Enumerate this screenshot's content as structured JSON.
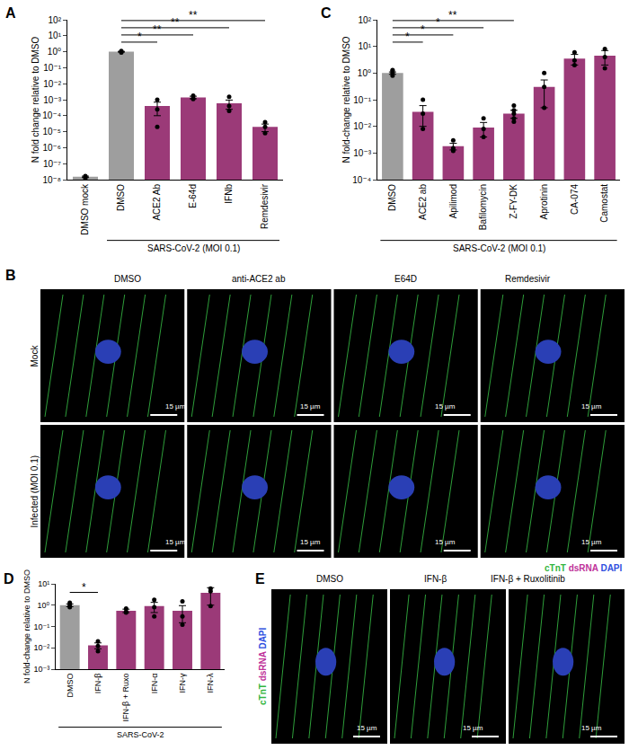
{
  "chart_data": [
    {
      "type": "bar",
      "title": "A",
      "ylabel": "N fold change relative to DMSO",
      "categories": [
        "DMSO mock",
        "DMSO",
        "ACE2 Ab",
        "E-64d",
        "IFNb",
        "Remdesivir"
      ],
      "values": [
        1.5e-08,
        1,
        0.0004,
        0.0014,
        0.0006,
        2e-05
      ],
      "errors": [
        1.5e-09,
        0.05,
        0.0003,
        0.00025,
        0.00035,
        1e-05
      ],
      "points": [
        [
          1.2e-08,
          1.5e-08,
          1.7e-08
        ],
        [
          0.9,
          1.0,
          1.1
        ],
        [
          0.001,
          0.00025,
          2e-05
        ],
        [
          0.0018,
          0.0012,
          0.0011
        ],
        [
          0.0015,
          0.0004,
          0.0002
        ],
        [
          4e-05,
          2e-05,
          8e-06
        ]
      ],
      "colors": [
        "#9e9e9e",
        "#9e9e9e",
        "#9b3a78",
        "#9b3a78",
        "#9b3a78",
        "#9b3a78"
      ],
      "log": "y",
      "grid": false,
      "ylim": [
        1e-08,
        100
      ],
      "yticks": [
        {
          "value": 1e-08,
          "label": "10⁻⁸"
        },
        {
          "value": 1e-07,
          "label": "10⁻⁷"
        },
        {
          "value": 1e-06,
          "label": "10⁻⁶"
        },
        {
          "value": 1e-05,
          "label": "10⁻⁵"
        },
        {
          "value": 0.0001,
          "label": "10⁻⁴"
        },
        {
          "value": 0.001,
          "label": "10⁻³"
        },
        {
          "value": 0.01,
          "label": "10⁻²"
        },
        {
          "value": 0.1,
          "label": "10⁻¹"
        },
        {
          "value": 1,
          "label": "10⁰"
        },
        {
          "value": 10,
          "label": "10¹"
        },
        {
          "value": 100,
          "label": "10²"
        }
      ],
      "reference_line": 1,
      "significance": [
        {
          "from": "DMSO",
          "to": "ACE2 Ab",
          "text": "*"
        },
        {
          "from": "DMSO",
          "to": "E-64d",
          "text": "**"
        },
        {
          "from": "DMSO",
          "to": "IFNb",
          "text": "**"
        },
        {
          "from": "DMSO",
          "to": "Remdesivir",
          "text": "**"
        }
      ],
      "group_label": {
        "text": "SARS-CoV-2 (MOI 0.1)",
        "from": "DMSO",
        "to": "Remdesivir"
      }
    },
    {
      "type": "bar",
      "title": "C",
      "ylabel": "N fold-change relative to DMSO",
      "categories": [
        "DMSO",
        "ACE2 ab",
        "Apilimod",
        "Bafilomycin",
        "Z-FY-DK",
        "Aprotinin",
        "CA-074",
        "Camostat"
      ],
      "values": [
        1.0,
        0.035,
        0.0018,
        0.009,
        0.03,
        0.3,
        3.5,
        4.5
      ],
      "errors": [
        0.1,
        0.025,
        0.0005,
        0.005,
        0.01,
        0.25,
        1.5,
        2.5
      ],
      "points": [
        [
          0.8,
          1.0,
          1.2,
          1.3
        ],
        [
          0.1,
          0.03,
          0.008
        ],
        [
          0.003,
          0.0015,
          0.0012
        ],
        [
          0.02,
          0.008,
          0.004
        ],
        [
          0.06,
          0.04,
          0.03,
          0.02,
          0.015
        ],
        [
          1.0,
          0.3,
          0.05
        ],
        [
          6,
          3,
          2
        ],
        [
          8,
          4,
          1.5
        ]
      ],
      "colors": [
        "#9e9e9e",
        "#9b3a78",
        "#9b3a78",
        "#9b3a78",
        "#9b3a78",
        "#9b3a78",
        "#9b3a78",
        "#9b3a78"
      ],
      "log": "y",
      "grid": false,
      "ylim": [
        0.0001,
        100
      ],
      "yticks": [
        {
          "value": 0.0001,
          "label": "10⁻⁴"
        },
        {
          "value": 0.001,
          "label": "10⁻³"
        },
        {
          "value": 0.01,
          "label": "10⁻²"
        },
        {
          "value": 0.1,
          "label": "10⁻¹"
        },
        {
          "value": 1,
          "label": "10⁰"
        },
        {
          "value": 10,
          "label": "10¹"
        },
        {
          "value": 100,
          "label": "10²"
        }
      ],
      "reference_line": 1,
      "significance": [
        {
          "from": "DMSO",
          "to": "ACE2 ab",
          "text": "*"
        },
        {
          "from": "DMSO",
          "to": "Apilimod",
          "text": "*"
        },
        {
          "from": "DMSO",
          "to": "Bafilomycin",
          "text": "*"
        },
        {
          "from": "DMSO",
          "to": "Z-FY-DK",
          "text": "**"
        }
      ],
      "group_label": {
        "text": "SARS-CoV-2 (MOI 0.1)",
        "from": "DMSO",
        "to": "Camostat"
      }
    },
    {
      "type": "bar",
      "title": "D",
      "ylabel": "N fold-change relative to DMSO",
      "categories": [
        "DMSO",
        "IFN-β",
        "IFN-β + Ruxo",
        "IFN-α",
        "IFN-γ",
        "IFN-λ"
      ],
      "values": [
        1.0,
        0.013,
        0.55,
        0.9,
        0.55,
        3.8
      ],
      "errors": [
        0.15,
        0.004,
        0.1,
        0.45,
        0.4,
        2.8
      ],
      "points": [
        [
          0.8,
          1.0,
          1.3
        ],
        [
          0.02,
          0.012,
          0.007
        ],
        [
          0.7,
          0.5,
          0.45
        ],
        [
          1.8,
          0.8,
          0.3
        ],
        [
          1.5,
          0.3,
          0.12
        ],
        [
          6,
          4.5,
          0.9
        ]
      ],
      "colors": [
        "#9e9e9e",
        "#9b3a78",
        "#9b3a78",
        "#9b3a78",
        "#9b3a78",
        "#9b3a78"
      ],
      "log": "y",
      "grid": false,
      "ylim": [
        0.001,
        10
      ],
      "yticks": [
        {
          "value": 0.001,
          "label": "10⁻³"
        },
        {
          "value": 0.01,
          "label": "10⁻²"
        },
        {
          "value": 0.1,
          "label": "10⁻¹"
        },
        {
          "value": 1,
          "label": "10⁰"
        },
        {
          "value": 10,
          "label": "10¹"
        }
      ],
      "reference_line": 1,
      "significance": [
        {
          "from": "DMSO",
          "to": "IFN-β",
          "text": "*"
        }
      ],
      "group_label": {
        "text": "SARS-CoV-2",
        "from": "DMSO",
        "to": "IFN-λ"
      }
    }
  ],
  "images": [
    {
      "title": "B",
      "columns": [
        "DMSO",
        "anti-ACE2 ab",
        "E64D",
        "Remdesivir"
      ],
      "rows": [
        "Mock",
        "Infected (MOI 0.1)"
      ],
      "scale_bar": "15 µm",
      "channels": [
        {
          "name": "cTnT",
          "color": "#33b540"
        },
        {
          "name": "dsRNA",
          "color": "#c0339a"
        },
        {
          "name": "DAPI",
          "color": "#3050e0"
        }
      ]
    },
    {
      "title": "E",
      "columns": [
        "DMSO",
        "IFN-β",
        "IFN-β + Ruxolitinib"
      ],
      "rows": [],
      "scale_bar": "15 µm",
      "channels": [
        {
          "name": "cTnT",
          "color": "#33b540"
        },
        {
          "name": "dsRNA",
          "color": "#c0339a"
        },
        {
          "name": "DAPI",
          "color": "#3050e0"
        }
      ]
    }
  ]
}
